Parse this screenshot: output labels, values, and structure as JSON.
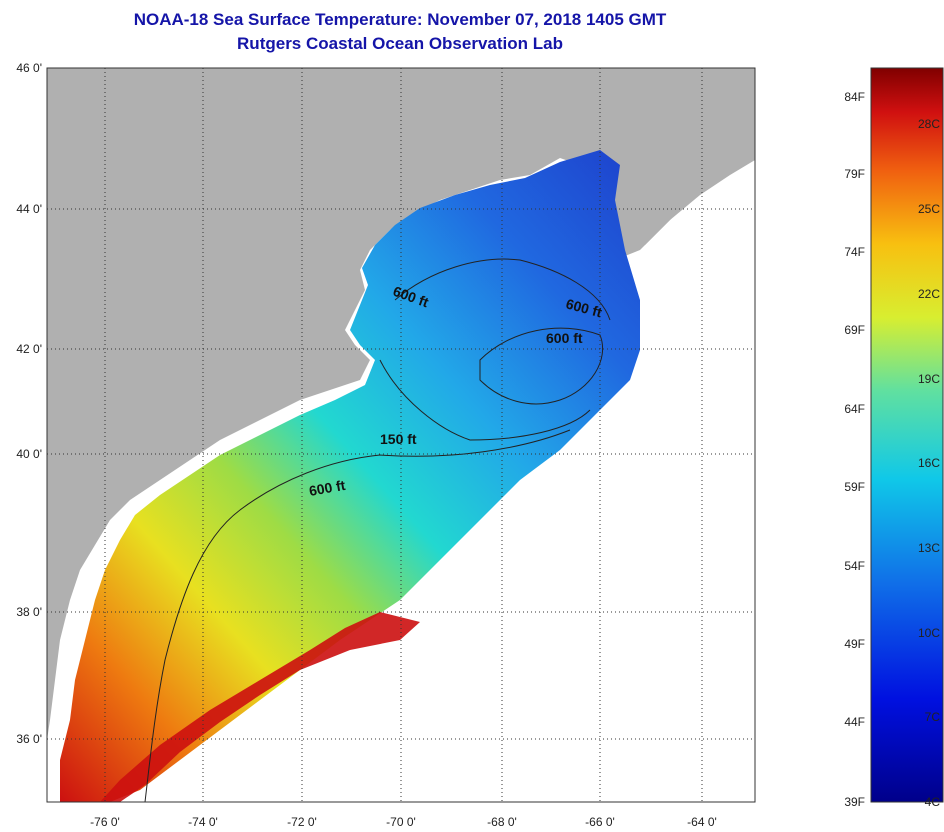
{
  "header": {
    "title": "NOAA-18 Sea Surface Temperature:  November 07, 2018 1405 GMT",
    "subtitle": "Rutgers Coastal Ocean Observation Lab"
  },
  "axes": {
    "lat_labels": [
      "46 0'",
      "44 0'",
      "42 0'",
      "40 0'",
      "38 0'",
      "36 0'"
    ],
    "lon_labels": [
      "-76 0'",
      "-74 0'",
      "-72 0'",
      "-70 0'",
      "-68 0'",
      "-66 0'",
      "-64 0'"
    ]
  },
  "contours": {
    "label_600a": "600 ft",
    "label_600b": "600 ft",
    "label_600c": "600 ft",
    "label_150": "150 ft",
    "label_600d": "600 ft"
  },
  "colorbar": {
    "fahrenheit": [
      "84F",
      "79F",
      "74F",
      "69F",
      "64F",
      "59F",
      "54F",
      "49F",
      "44F",
      "39F"
    ],
    "celsius": [
      "28C",
      "25C",
      "22C",
      "19C",
      "16C",
      "13C",
      "10C",
      "7C",
      "4C"
    ]
  },
  "colors": {
    "land": "#b0b0b0",
    "no_data": "#ffffff",
    "cold": "#1e3ccf",
    "warm": "#cc1010",
    "title": "#1515a8"
  }
}
